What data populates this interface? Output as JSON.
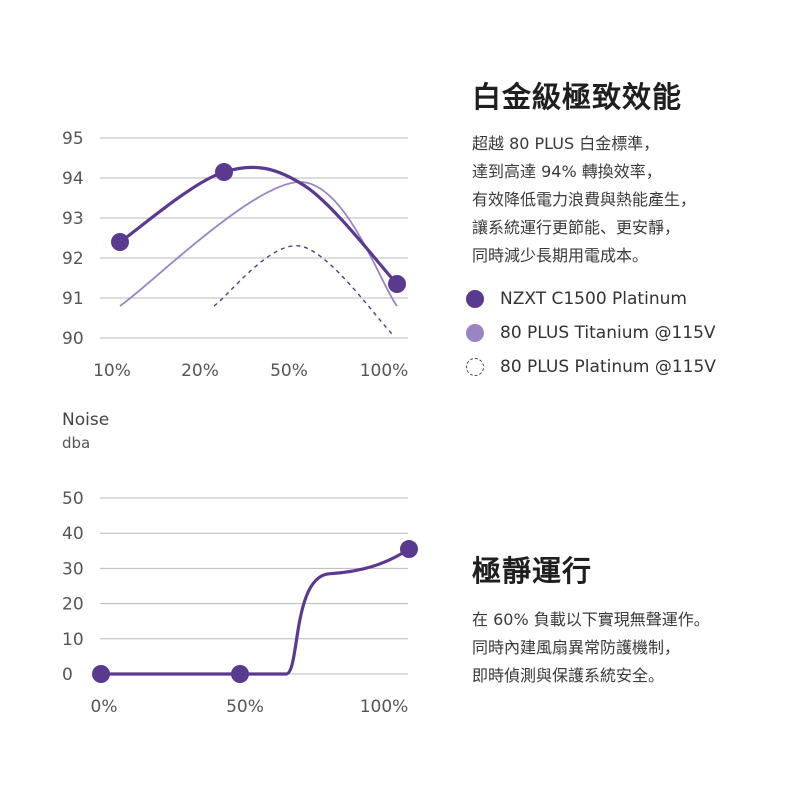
{
  "colors": {
    "nzxt": "#5a3a8e",
    "titanium": "#9a84c4",
    "platinum": "#4a3f8a",
    "grid": "#b8b8b8",
    "axis_text": "#555555"
  },
  "efficiency": {
    "heading": "白金級極致效能",
    "body_lines": [
      "超越 80 PLUS 白金標準，",
      "達到高達 94% 轉換效率，",
      "有效降低電力浪費與熱能產生，",
      "讓系統運行更節能、更安靜，",
      "同時減少長期用電成本。"
    ],
    "legend": [
      {
        "label": "NZXT C1500 Platinum"
      },
      {
        "label": "80 PLUS Titanium @115V"
      },
      {
        "label": "80 PLUS Platinum @115V"
      }
    ]
  },
  "noise": {
    "heading": "極靜運行",
    "body_lines": [
      "在 60% 負載以下實現無聲運作。",
      "同時內建風扇異常防護機制，",
      "即時偵測與保護系統安全。"
    ]
  },
  "chart_data": [
    {
      "type": "line",
      "categories": [
        "10%",
        "20%",
        "50%",
        "100%"
      ],
      "ylim": [
        90,
        95
      ],
      "yticks": [
        95,
        94,
        93,
        92,
        91,
        90
      ],
      "grid": true,
      "series": [
        {
          "name": "NZXT C1500 Platinum",
          "x": [
            "10%",
            "20%",
            "100%"
          ],
          "values": [
            92.4,
            94.15,
            91.35
          ],
          "style": "solid-thick",
          "markers": true
        },
        {
          "name": "80 PLUS Titanium @115V",
          "x": [
            "10%",
            "50%",
            "100%"
          ],
          "values": [
            90.8,
            93.9,
            90.8
          ],
          "style": "solid-thin",
          "markers": false
        },
        {
          "name": "80 PLUS Platinum @115V",
          "x": [
            "20%",
            "50%",
            "100%"
          ],
          "values": [
            90.8,
            92.3,
            90.05
          ],
          "style": "dashed",
          "markers": false
        }
      ]
    },
    {
      "type": "line",
      "ylabel": "Noise",
      "yunit": "dba",
      "categories": [
        "0%",
        "50%",
        "100%"
      ],
      "ylim": [
        0,
        50
      ],
      "yticks": [
        50,
        40,
        30,
        20,
        10,
        0
      ],
      "grid": true,
      "series": [
        {
          "name": "NZXT C1500 Platinum",
          "x": [
            "0%",
            "50%",
            "100%"
          ],
          "values": [
            0,
            0,
            35.5
          ]
        }
      ]
    }
  ]
}
